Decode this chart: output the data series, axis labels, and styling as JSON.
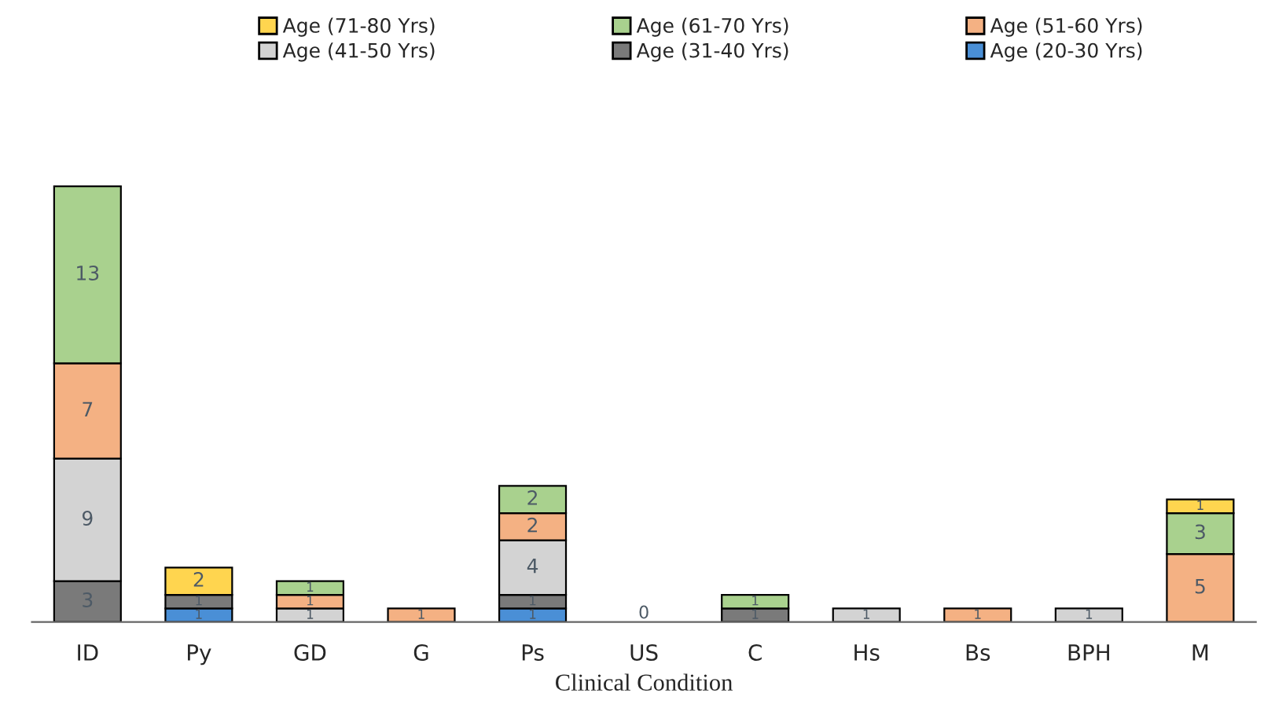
{
  "chart_data": {
    "type": "bar",
    "stacked": true,
    "xlabel": "Clinical Condition",
    "legend": "top",
    "categories": [
      "ID",
      "Py",
      "GD",
      "G",
      "Ps",
      "US",
      "C",
      "Hs",
      "Bs",
      "BPH",
      "M"
    ],
    "series": [
      {
        "name": "Age (20-30 Yrs)",
        "color": "#4a8fd6",
        "values": [
          0,
          1,
          0,
          0,
          1,
          0,
          0,
          0,
          0,
          0,
          0
        ],
        "value_labels": [
          null,
          "1",
          null,
          null,
          "1",
          "0",
          null,
          null,
          null,
          null,
          null
        ]
      },
      {
        "name": "Age (31-40 Yrs)",
        "color": "#7a7a7a",
        "values": [
          3,
          1,
          0,
          0,
          1,
          0,
          1,
          0,
          0,
          0,
          0
        ],
        "value_labels": [
          "3",
          "1",
          null,
          null,
          "1",
          null,
          "1",
          null,
          null,
          null,
          null
        ]
      },
      {
        "name": "Age (41-50 Yrs)",
        "color": "#d3d3d3",
        "values": [
          9,
          0,
          1,
          0,
          4,
          0,
          0,
          1,
          0,
          1,
          0
        ],
        "value_labels": [
          "9",
          null,
          "1",
          null,
          "4",
          null,
          null,
          "1",
          null,
          "1",
          null
        ]
      },
      {
        "name": "Age (51-60 Yrs)",
        "color": "#f4b183",
        "values": [
          7,
          0,
          1,
          1,
          2,
          0,
          0,
          0,
          1,
          0,
          5
        ],
        "value_labels": [
          "7",
          null,
          "1",
          "1",
          "2",
          null,
          null,
          null,
          "1",
          null,
          "5"
        ]
      },
      {
        "name": "Age (61-70 Yrs)",
        "color": "#a9d18e",
        "values": [
          13,
          0,
          1,
          0,
          2,
          0,
          1,
          0,
          0,
          0,
          3
        ],
        "value_labels": [
          "13",
          null,
          "1",
          null,
          "2",
          null,
          "1",
          null,
          null,
          null,
          "3"
        ]
      },
      {
        "name": "Age (71-80 Yrs)",
        "color": "#ffd54f",
        "values": [
          0,
          2,
          0,
          0,
          0,
          0,
          0,
          0,
          0,
          0,
          1
        ],
        "value_labels": [
          null,
          "2",
          null,
          null,
          null,
          null,
          null,
          null,
          null,
          null,
          "1"
        ]
      }
    ]
  }
}
